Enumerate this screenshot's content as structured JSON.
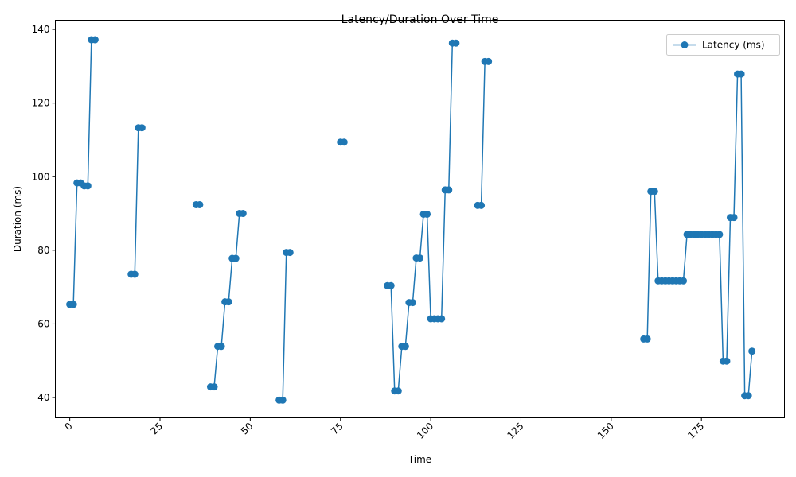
{
  "chart_data": {
    "type": "line",
    "title": "Latency/Duration Over Time",
    "xlabel": "Time",
    "ylabel": "Duration (ms)",
    "xlim": [
      -4,
      198
    ],
    "ylim": [
      34.5,
      142.5
    ],
    "xticks": [
      0,
      25,
      50,
      75,
      100,
      125,
      150,
      175
    ],
    "yticks": [
      40,
      60,
      80,
      100,
      120,
      140
    ],
    "grid": false,
    "legend_position": "upper-right",
    "series": [
      {
        "name": "Latency (ms)",
        "color": "#1f77b4",
        "x": [
          0,
          1,
          2,
          3,
          4,
          5,
          6,
          7,
          null,
          17,
          18,
          19,
          20,
          null,
          35,
          36,
          null,
          39,
          40,
          41,
          42,
          43,
          44,
          45,
          46,
          47,
          48,
          null,
          58,
          59,
          60,
          61,
          null,
          75,
          76,
          null,
          88,
          89,
          90,
          91,
          92,
          93,
          94,
          95,
          96,
          97,
          98,
          99,
          100,
          101,
          102,
          103,
          104,
          105,
          106,
          107,
          null,
          113,
          114,
          115,
          116,
          null,
          159,
          160,
          161,
          162,
          163,
          164,
          165,
          166,
          167,
          168,
          169,
          170,
          171,
          172,
          173,
          174,
          175,
          176,
          177,
          178,
          179,
          180,
          181,
          182,
          183,
          184,
          185,
          186,
          187,
          188,
          189
        ],
        "y": [
          65.3,
          65.3,
          98.3,
          98.3,
          97.5,
          97.5,
          137.2,
          137.2,
          null,
          73.5,
          73.5,
          113.3,
          113.3,
          null,
          92.4,
          92.4,
          null,
          42.9,
          42.9,
          53.9,
          53.9,
          66.0,
          66.0,
          77.8,
          77.8,
          90.0,
          90.0,
          null,
          39.3,
          39.3,
          79.4,
          79.4,
          null,
          109.4,
          109.4,
          null,
          70.4,
          70.4,
          41.8,
          41.8,
          53.9,
          53.9,
          65.8,
          65.8,
          77.9,
          77.9,
          89.8,
          89.8,
          61.4,
          61.4,
          61.4,
          61.4,
          96.4,
          96.4,
          136.3,
          136.3,
          null,
          92.2,
          92.2,
          131.3,
          131.3,
          null,
          55.9,
          55.9,
          96.0,
          96.0,
          71.7,
          71.7,
          71.7,
          71.7,
          71.7,
          71.7,
          71.7,
          71.7,
          84.3,
          84.3,
          84.3,
          84.3,
          84.3,
          84.3,
          84.3,
          84.3,
          84.3,
          84.3,
          49.9,
          49.9,
          88.9,
          88.9,
          127.9,
          127.9,
          40.5,
          40.5,
          52.6
        ]
      }
    ]
  }
}
